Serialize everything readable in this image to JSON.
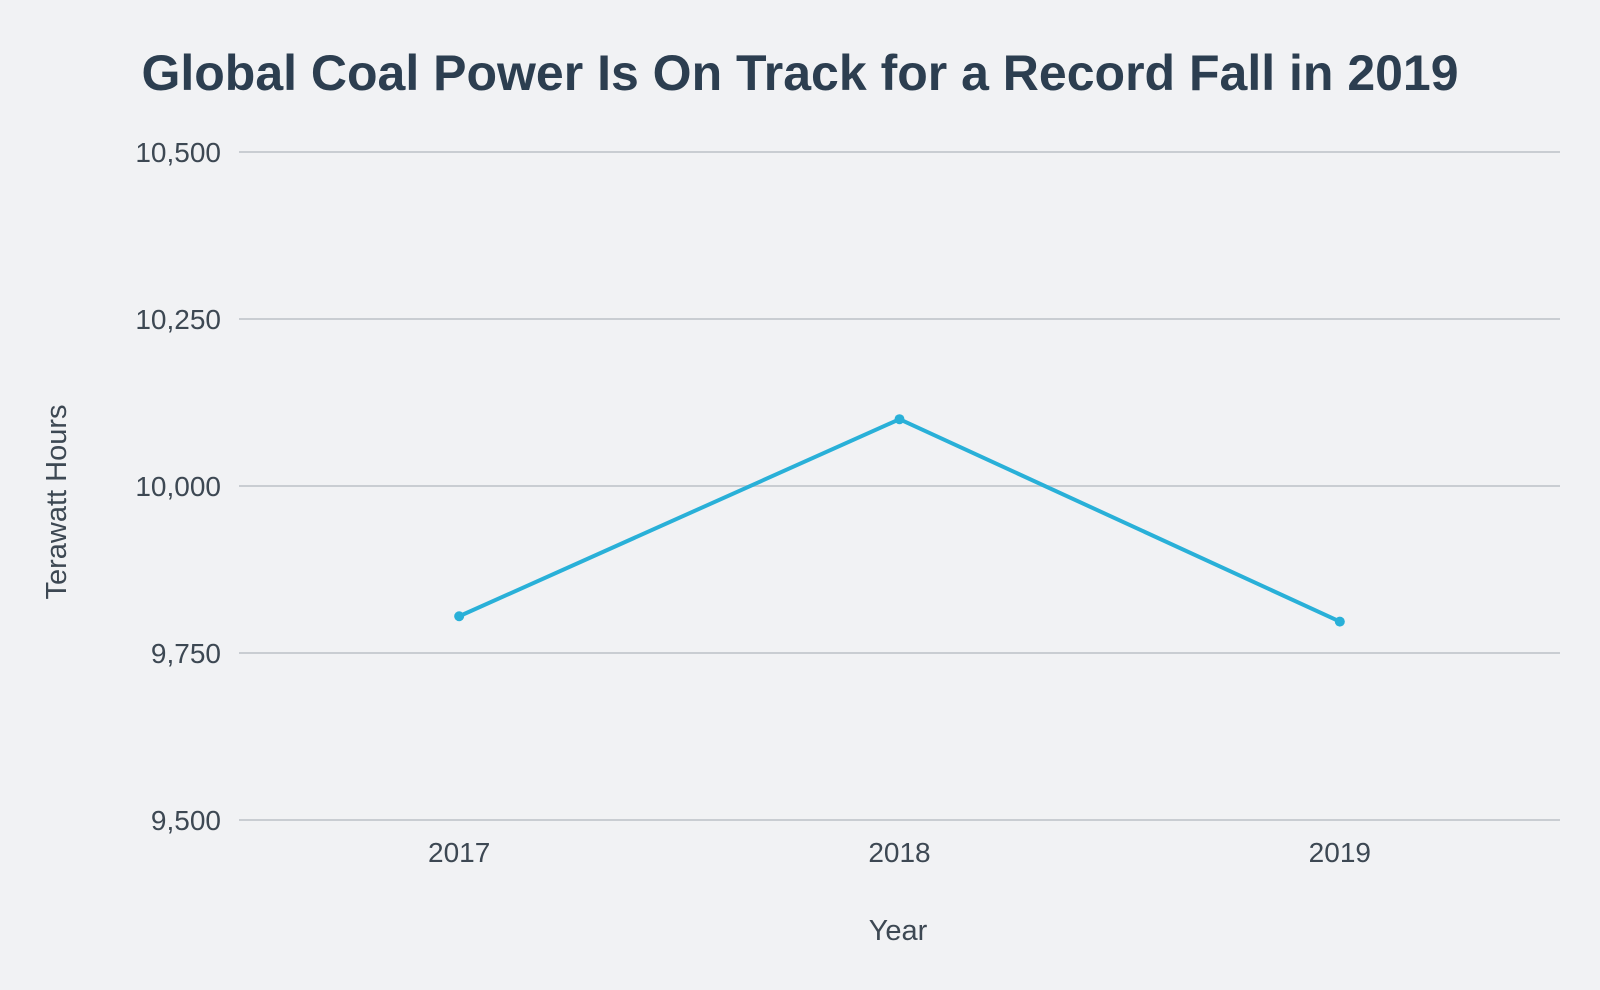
{
  "chart_data": {
    "type": "line",
    "title": "Global Coal Power Is On Track for a Record Fall in 2019",
    "xlabel": "Year",
    "ylabel": "Terawatt Hours",
    "categories": [
      "2017",
      "2018",
      "2019"
    ],
    "series": [
      {
        "values": [
          9805,
          10100,
          9797
        ]
      }
    ],
    "ylim": [
      9500,
      10500
    ],
    "yticks": [
      9500,
      9750,
      10000,
      10250,
      10500
    ],
    "ytick_labels": [
      "9,500",
      "9,750",
      "10,000",
      "10,250",
      "10,500"
    ],
    "grid": true,
    "legend": "none",
    "colors": {
      "line": "#29b0d8",
      "background": "#f1f2f4",
      "title": "#2c3e50"
    }
  }
}
